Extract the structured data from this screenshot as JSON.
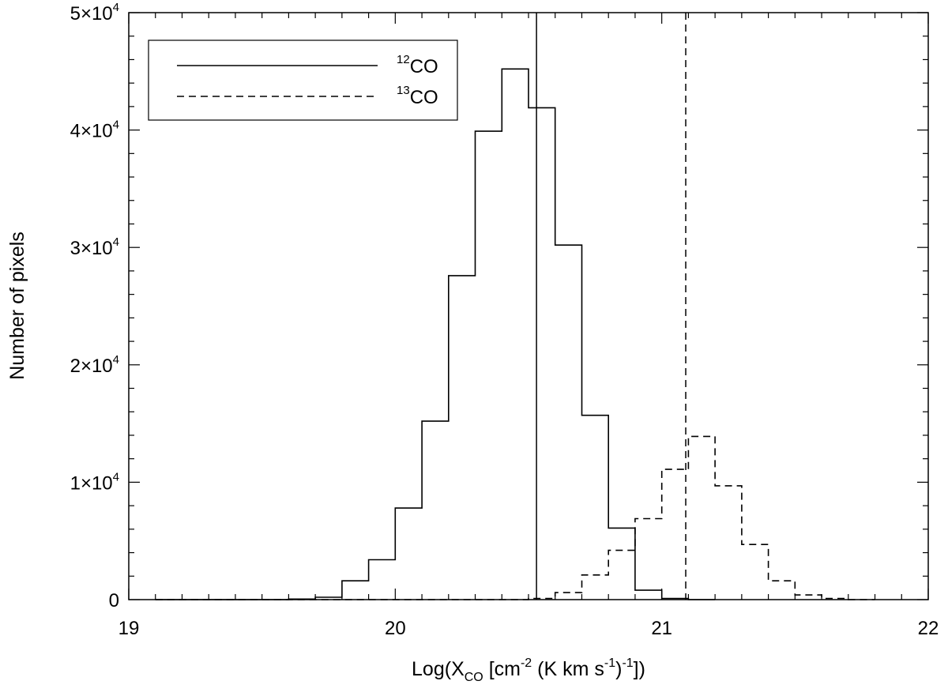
{
  "chart_data": {
    "type": "histogram",
    "xlabel": {
      "main": "Log(X",
      "sub": "CO",
      "mid": " [cm",
      "sup1": "-2",
      "mid2": " (K km s",
      "sup2": "-1",
      "mid3": ")",
      "sup3": "-1",
      "end": "])"
    },
    "ylabel": "Number of pixels",
    "xlim": [
      19,
      22
    ],
    "ylim": [
      0,
      50000
    ],
    "x_ticks": [
      "19",
      "20",
      "21",
      "22"
    ],
    "y_ticks": [
      {
        "value": 0,
        "mant": "0",
        "exp": ""
      },
      {
        "value": 10000,
        "mant": "1×10",
        "exp": "4"
      },
      {
        "value": 20000,
        "mant": "2×10",
        "exp": "4"
      },
      {
        "value": 30000,
        "mant": "3×10",
        "exp": "4"
      },
      {
        "value": 40000,
        "mant": "4×10",
        "exp": "4"
      },
      {
        "value": 50000,
        "mant": "5×10",
        "exp": "4"
      }
    ],
    "bin_width": 0.1,
    "series": [
      {
        "name": "12CO",
        "label_sup": "12",
        "label_text": "CO",
        "style": "solid",
        "bin_start": 19.1,
        "counts": [
          0,
          0,
          0,
          0,
          0,
          50,
          200,
          1600,
          3400,
          7800,
          15200,
          27600,
          39900,
          45200,
          41900,
          30200,
          15700,
          6100,
          800,
          100,
          0
        ],
        "marker_line": 20.53
      },
      {
        "name": "13CO",
        "label_sup": "13",
        "label_text": "CO",
        "style": "dashed",
        "bin_start": 19.1,
        "counts": [
          0,
          0,
          0,
          0,
          0,
          0,
          0,
          0,
          0,
          0,
          0,
          0,
          0,
          0,
          100,
          600,
          2100,
          4200,
          6900,
          11100,
          13900,
          9700,
          4700,
          1600,
          400,
          100,
          0
        ],
        "marker_line": 21.09
      }
    ],
    "legend_position": "top-left",
    "colors": {
      "line": "#000000",
      "background": "#ffffff"
    }
  }
}
